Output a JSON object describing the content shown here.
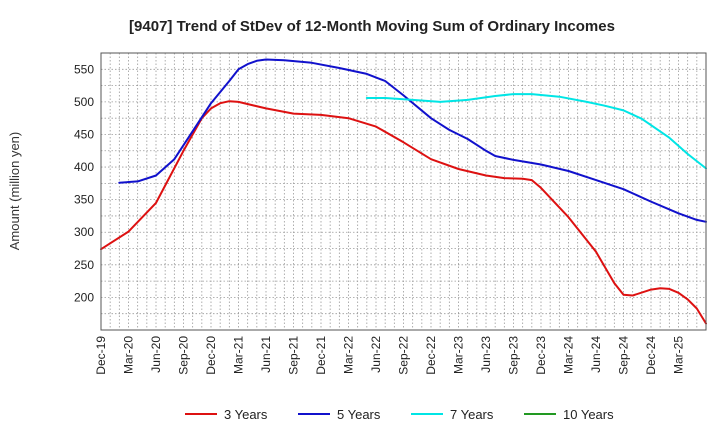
{
  "chart_data": {
    "type": "line",
    "title": "[9407]  Trend of StDev of 12-Month Moving Sum of Ordinary Incomes",
    "xlabel": "",
    "ylabel": "Amount (million yen)",
    "ylim": [
      150,
      575
    ],
    "yticks": [
      200,
      250,
      300,
      350,
      400,
      450,
      500,
      550
    ],
    "xlim": [
      0,
      66
    ],
    "x_tick_labels": [
      "Dec-19",
      "Mar-20",
      "Jun-20",
      "Sep-20",
      "Dec-20",
      "Mar-21",
      "Jun-21",
      "Sep-21",
      "Dec-21",
      "Mar-22",
      "Jun-22",
      "Sep-22",
      "Dec-22",
      "Mar-23",
      "Jun-23",
      "Sep-23",
      "Dec-23",
      "Mar-24",
      "Jun-24",
      "Sep-24",
      "Dec-24",
      "Mar-25"
    ],
    "grid": true,
    "legend_position": "bottom",
    "series": [
      {
        "name": "3 Years",
        "color": "#dd1111",
        "points": [
          [
            0,
            274
          ],
          [
            3,
            301
          ],
          [
            6,
            345
          ],
          [
            9,
            425
          ],
          [
            11,
            475
          ],
          [
            12,
            490
          ],
          [
            13,
            498
          ],
          [
            14,
            501
          ],
          [
            15,
            500
          ],
          [
            18,
            490
          ],
          [
            21,
            482
          ],
          [
            24,
            480
          ],
          [
            27,
            475
          ],
          [
            30,
            462
          ],
          [
            33,
            438
          ],
          [
            36,
            412
          ],
          [
            39,
            397
          ],
          [
            42,
            387
          ],
          [
            44,
            383
          ],
          [
            46,
            382
          ],
          [
            47,
            380
          ],
          [
            48,
            368
          ],
          [
            51,
            323
          ],
          [
            54,
            270
          ],
          [
            56,
            222
          ],
          [
            57,
            204
          ],
          [
            58,
            203
          ],
          [
            60,
            212
          ],
          [
            61,
            214
          ],
          [
            62,
            213
          ],
          [
            63,
            207
          ],
          [
            64,
            197
          ],
          [
            65,
            183
          ],
          [
            66,
            160
          ]
        ]
      },
      {
        "name": "5 Years",
        "color": "#1111cc",
        "points": [
          [
            2,
            376
          ],
          [
            4,
            378
          ],
          [
            6,
            387
          ],
          [
            8,
            412
          ],
          [
            10,
            455
          ],
          [
            12,
            498
          ],
          [
            14,
            532
          ],
          [
            15,
            550
          ],
          [
            16,
            558
          ],
          [
            17,
            563
          ],
          [
            18,
            565
          ],
          [
            20,
            564
          ],
          [
            23,
            560
          ],
          [
            26,
            552
          ],
          [
            29,
            543
          ],
          [
            31,
            532
          ],
          [
            33,
            510
          ],
          [
            36,
            475
          ],
          [
            38,
            457
          ],
          [
            40,
            443
          ],
          [
            42,
            425
          ],
          [
            43,
            417
          ],
          [
            45,
            411
          ],
          [
            48,
            404
          ],
          [
            51,
            394
          ],
          [
            54,
            380
          ],
          [
            57,
            366
          ],
          [
            60,
            347
          ],
          [
            63,
            329
          ],
          [
            65,
            319
          ],
          [
            66,
            316
          ]
        ]
      },
      {
        "name": "7 Years",
        "color": "#00e5e5",
        "points": [
          [
            29,
            506
          ],
          [
            31,
            506
          ],
          [
            34,
            503
          ],
          [
            37,
            500
          ],
          [
            40,
            503
          ],
          [
            43,
            509
          ],
          [
            45,
            512
          ],
          [
            47,
            512
          ],
          [
            50,
            508
          ],
          [
            53,
            500
          ],
          [
            55,
            494
          ],
          [
            57,
            487
          ],
          [
            59,
            474
          ],
          [
            62,
            445
          ],
          [
            64,
            420
          ],
          [
            66,
            398
          ]
        ]
      },
      {
        "name": "10 Years",
        "color": "#229922",
        "points": []
      }
    ]
  }
}
